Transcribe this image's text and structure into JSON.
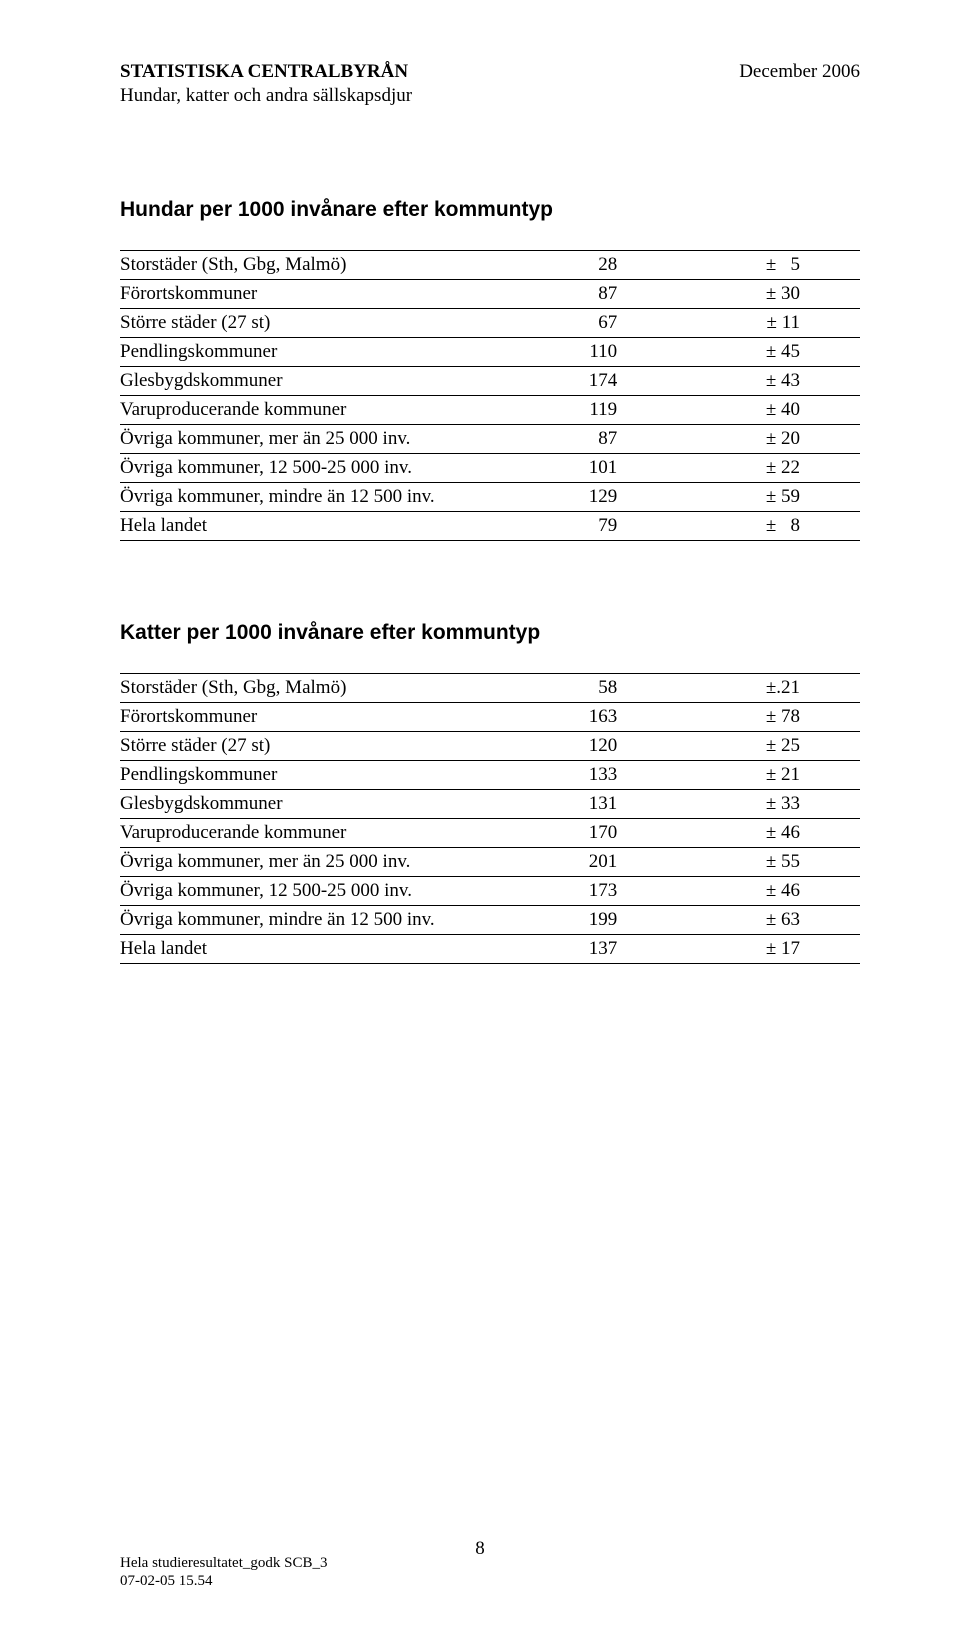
{
  "header": {
    "org": "STATISTISKA CENTRALBYRÅN",
    "sub": "Hundar, katter och andra sällskapsdjur",
    "date": "December 2006"
  },
  "table_dogs": {
    "title": "Hundar per 1000 invånare efter kommuntyp",
    "rows": [
      {
        "label": "Storstäder (Sth, Gbg, Malmö)",
        "value": "28",
        "err": "±   5"
      },
      {
        "label": "Förortskommuner",
        "value": "87",
        "err": "± 30"
      },
      {
        "label": "Större städer (27 st)",
        "value": "67",
        "err": "± 11"
      },
      {
        "label": "Pendlingskommuner",
        "value": "110",
        "err": "± 45"
      },
      {
        "label": "Glesbygdskommuner",
        "value": "174",
        "err": "± 43"
      },
      {
        "label": "Varuproducerande kommuner",
        "value": "119",
        "err": "± 40"
      },
      {
        "label": "Övriga kommuner, mer än 25 000 inv.",
        "value": "87",
        "err": "± 20"
      },
      {
        "label": "Övriga kommuner, 12 500-25 000 inv.",
        "value": "101",
        "err": "± 22"
      },
      {
        "label": "Övriga kommuner, mindre än 12 500 inv.",
        "value": "129",
        "err": "± 59"
      },
      {
        "label": "Hela landet",
        "value": "79",
        "err": "±   8"
      }
    ]
  },
  "table_cats": {
    "title": "Katter per 1000 invånare efter kommuntyp",
    "rows": [
      {
        "label": "Storstäder (Sth, Gbg, Malmö)",
        "value": "58",
        "err": "±.21"
      },
      {
        "label": "Förortskommuner",
        "value": "163",
        "err": "± 78"
      },
      {
        "label": "Större städer (27 st)",
        "value": "120",
        "err": "± 25"
      },
      {
        "label": "Pendlingskommuner",
        "value": "133",
        "err": "± 21"
      },
      {
        "label": "Glesbygdskommuner",
        "value": "131",
        "err": "± 33"
      },
      {
        "label": "Varuproducerande kommuner",
        "value": "170",
        "err": "± 46"
      },
      {
        "label": "Övriga kommuner, mer än 25 000 inv.",
        "value": "201",
        "err": "± 55"
      },
      {
        "label": "Övriga kommuner, 12 500-25 000 inv.",
        "value": "173",
        "err": "± 46"
      },
      {
        "label": "Övriga kommuner, mindre än 12 500 inv.",
        "value": "199",
        "err": "± 63"
      },
      {
        "label": "Hela landet",
        "value": "137",
        "err": "± 17"
      }
    ]
  },
  "footer": {
    "line1": "Hela studieresultatet_godk SCB_3",
    "line2": "07-02-05 15.54"
  },
  "page_number": "8"
}
